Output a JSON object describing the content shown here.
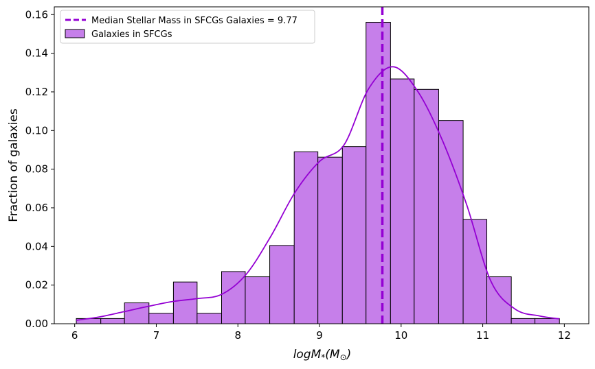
{
  "chart_data": {
    "type": "bar",
    "title": "",
    "xlabel": "logM",
    "xlabel_sub": "*",
    "xlabel_unit": "M",
    "xlabel_unit_sub": "⊙",
    "ylabel": "Fraction of galaxies",
    "xlim": [
      5.75,
      12.3
    ],
    "ylim": [
      0,
      0.164
    ],
    "xticks": [
      "6",
      "7",
      "8",
      "9",
      "10",
      "11",
      "12"
    ],
    "yticks": [
      "0.00",
      "0.02",
      "0.04",
      "0.06",
      "0.08",
      "0.10",
      "0.12",
      "0.14",
      "0.16"
    ],
    "bin_edges": [
      6.02,
      6.32,
      6.61,
      6.91,
      7.21,
      7.5,
      7.8,
      8.09,
      8.39,
      8.69,
      8.98,
      9.28,
      9.57,
      9.87,
      10.16,
      10.46,
      10.76,
      11.05,
      11.35,
      11.64,
      11.94
    ],
    "series": [
      {
        "name": "Galaxies in SFCGs",
        "values": [
          0.0027,
          0.0027,
          0.0108,
          0.0054,
          0.0216,
          0.0054,
          0.027,
          0.0243,
          0.0405,
          0.089,
          0.0862,
          0.0917,
          0.156,
          0.1267,
          0.1213,
          0.1052,
          0.054,
          0.0243,
          0.0027,
          0.0027
        ]
      }
    ],
    "kde": {
      "x": [
        6.02,
        6.3,
        6.6,
        6.9,
        7.2,
        7.5,
        7.8,
        8.1,
        8.4,
        8.7,
        9.0,
        9.3,
        9.6,
        9.9,
        10.2,
        10.5,
        10.8,
        11.1,
        11.4,
        11.7,
        11.94
      ],
      "y": [
        0.0018,
        0.0035,
        0.0062,
        0.009,
        0.0115,
        0.013,
        0.0152,
        0.0255,
        0.045,
        0.068,
        0.084,
        0.0925,
        0.1215,
        0.133,
        0.1205,
        0.0955,
        0.062,
        0.022,
        0.0075,
        0.004,
        0.0025
      ]
    },
    "median": {
      "label": "Median Stellar Mass in SFCGs Galaxies = 9.77",
      "value": 9.77
    },
    "legend_position": "upper-left",
    "grid": false,
    "colors": {
      "bar_fill": "#c67fea",
      "bar_edge": "#000000",
      "kde": "#9400d3",
      "median_line": "#9400d3"
    }
  }
}
